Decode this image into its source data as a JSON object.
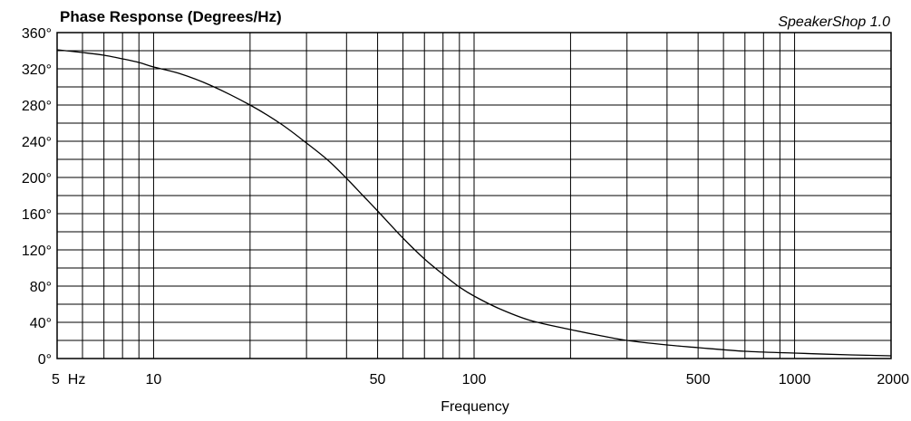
{
  "chart_data": {
    "type": "line",
    "title": "Phase Response (Degrees/Hz)",
    "brand": "SpeakerShop 1.0",
    "xlabel": "Frequency",
    "ylabel": "",
    "x_scale": "log",
    "xlim": [
      5,
      2000
    ],
    "ylim": [
      0,
      360
    ],
    "grid": true,
    "x_tick_labels": [
      {
        "value": 5,
        "label": "5  Hz"
      },
      {
        "value": 10,
        "label": "10"
      },
      {
        "value": 50,
        "label": "50"
      },
      {
        "value": 100,
        "label": "100"
      },
      {
        "value": 500,
        "label": "500"
      },
      {
        "value": 1000,
        "label": "1000"
      },
      {
        "value": 2000,
        "label": "2000"
      }
    ],
    "y_tick_labels": [
      {
        "value": 0,
        "label": "0°"
      },
      {
        "value": 40,
        "label": "40°"
      },
      {
        "value": 80,
        "label": "80°"
      },
      {
        "value": 120,
        "label": "120°"
      },
      {
        "value": 160,
        "label": "160°"
      },
      {
        "value": 200,
        "label": "200°"
      },
      {
        "value": 240,
        "label": "240°"
      },
      {
        "value": 280,
        "label": "280°"
      },
      {
        "value": 320,
        "label": "320°"
      },
      {
        "value": 360,
        "label": "360°"
      }
    ],
    "series": [
      {
        "x": [
          5,
          6,
          7,
          8,
          9,
          10,
          12,
          15,
          20,
          25,
          30,
          35,
          40,
          45,
          50,
          60,
          70,
          80,
          90,
          100,
          120,
          150,
          200,
          250,
          300,
          400,
          500,
          700,
          1000,
          1500,
          2000
        ],
        "y": [
          341,
          338,
          335,
          331,
          327,
          322,
          315,
          302,
          280,
          259,
          238,
          219,
          199,
          180,
          163,
          133,
          110,
          93,
          79,
          69,
          55,
          42,
          32,
          25,
          20,
          15,
          12,
          8,
          6,
          4,
          3
        ]
      }
    ]
  }
}
